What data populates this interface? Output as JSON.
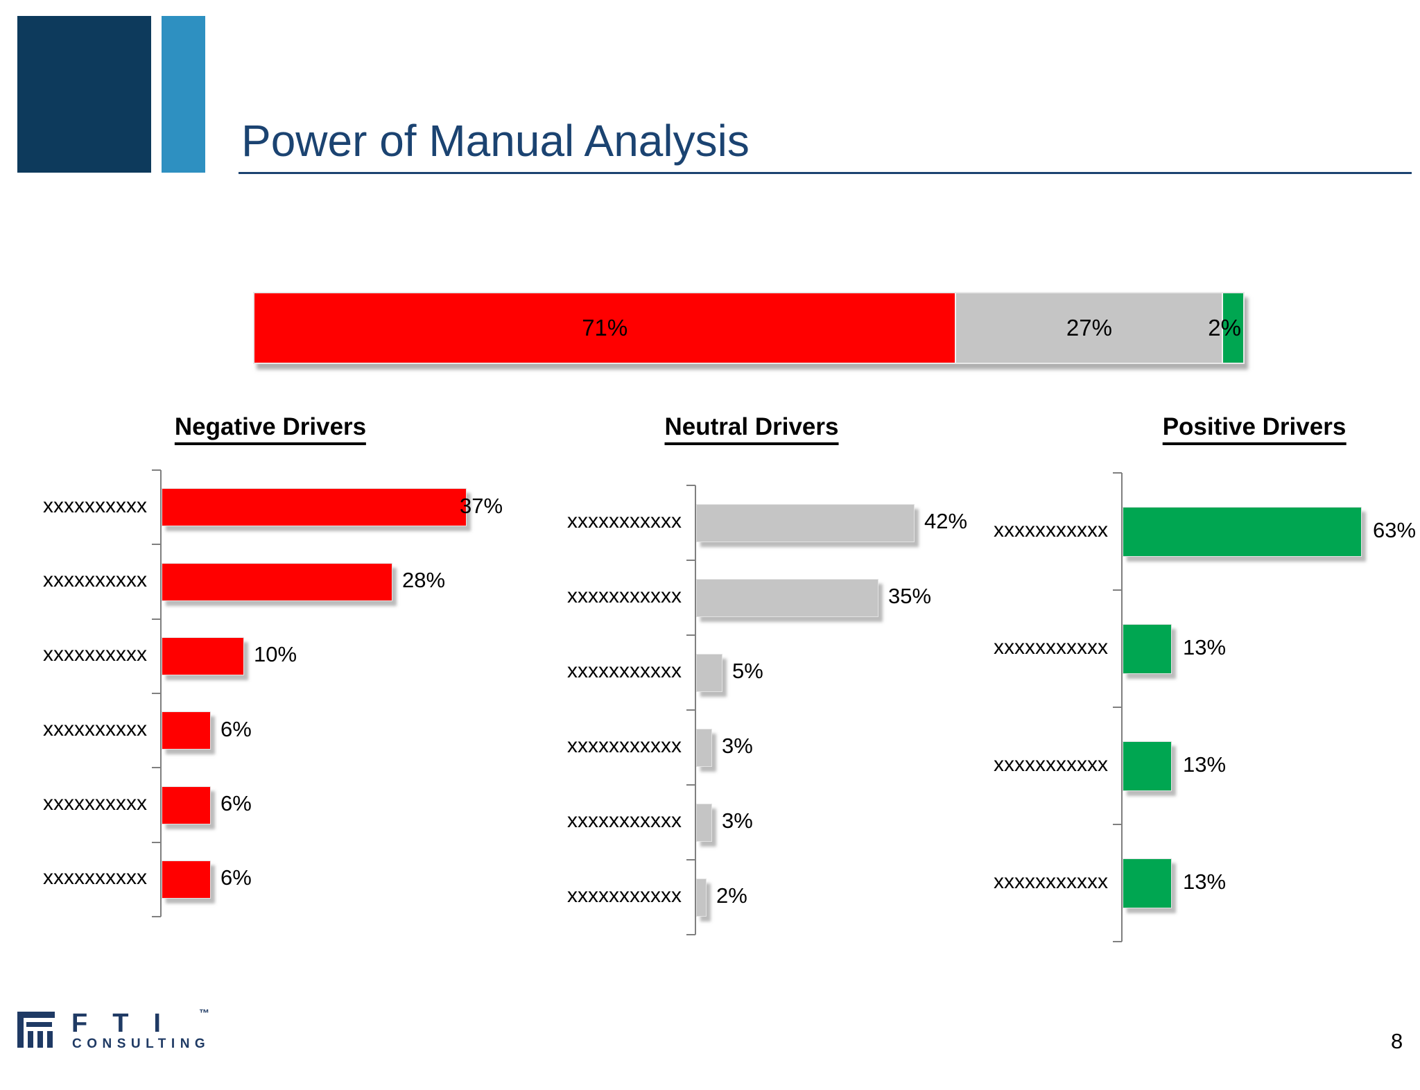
{
  "slide": {
    "title": "Power of Manual Analysis",
    "page_number": "8"
  },
  "footer": {
    "logo_letters": "FTI",
    "logo_tm": "™",
    "logo_subtext": "CONSULTING"
  },
  "colors": {
    "title_navy": "#1B4371",
    "square_dark": "#0D3A5C",
    "square_light": "#2E90C1",
    "negative_red": "#FF0000",
    "neutral_gray": "#C5C5C5",
    "positive_green": "#00A651",
    "axis_gray": "#7F7F7F",
    "logo_navy": "#1F3A64"
  },
  "chart_data": [
    {
      "id": "overall-sentiment",
      "type": "bar",
      "subtype": "horizontal-stacked",
      "xlim": [
        0,
        100
      ],
      "grid": false,
      "legend": "none",
      "segments": [
        {
          "name": "negative",
          "value": 71,
          "label": "71%",
          "color": "#FF0000"
        },
        {
          "name": "neutral",
          "value": 27,
          "label": "27%",
          "color": "#C5C5C5"
        },
        {
          "name": "positive",
          "value": 2,
          "label": "2%",
          "color": "#00A651"
        }
      ]
    },
    {
      "id": "negative-drivers",
      "type": "bar",
      "orientation": "horizontal",
      "title": "Negative Drivers",
      "categories": [
        "xxxxxxxxxx",
        "xxxxxxxxxx",
        "xxxxxxxxxx",
        "xxxxxxxxxx",
        "xxxxxxxxxx",
        "xxxxxxxxxx"
      ],
      "values": [
        37,
        28,
        10,
        6,
        6,
        6
      ],
      "labels": [
        "37%",
        "28%",
        "10%",
        "6%",
        "6%",
        "6%"
      ],
      "bar_color": "#FF0000",
      "grid": false,
      "legend": "none"
    },
    {
      "id": "neutral-drivers",
      "type": "bar",
      "orientation": "horizontal",
      "title": "Neutral Drivers",
      "categories": [
        "xxxxxxxxxxx",
        "xxxxxxxxxxx",
        "xxxxxxxxxxx",
        "xxxxxxxxxxx",
        "xxxxxxxxxxx",
        "xxxxxxxxxxx"
      ],
      "values": [
        42,
        35,
        5,
        3,
        3,
        2
      ],
      "labels": [
        "42%",
        "35%",
        "5%",
        "3%",
        "3%",
        "2%"
      ],
      "bar_color": "#C5C5C5",
      "grid": false,
      "legend": "none"
    },
    {
      "id": "positive-drivers",
      "type": "bar",
      "orientation": "horizontal",
      "title": "Positive Drivers",
      "categories": [
        "xxxxxxxxxxx",
        "xxxxxxxxxxx",
        "xxxxxxxxxxx",
        "xxxxxxxxxxx"
      ],
      "values": [
        63,
        13,
        13,
        13
      ],
      "labels": [
        "63%",
        "13%",
        "13%",
        "13%"
      ],
      "bar_color": "#00A651",
      "grid": false,
      "legend": "none"
    }
  ]
}
